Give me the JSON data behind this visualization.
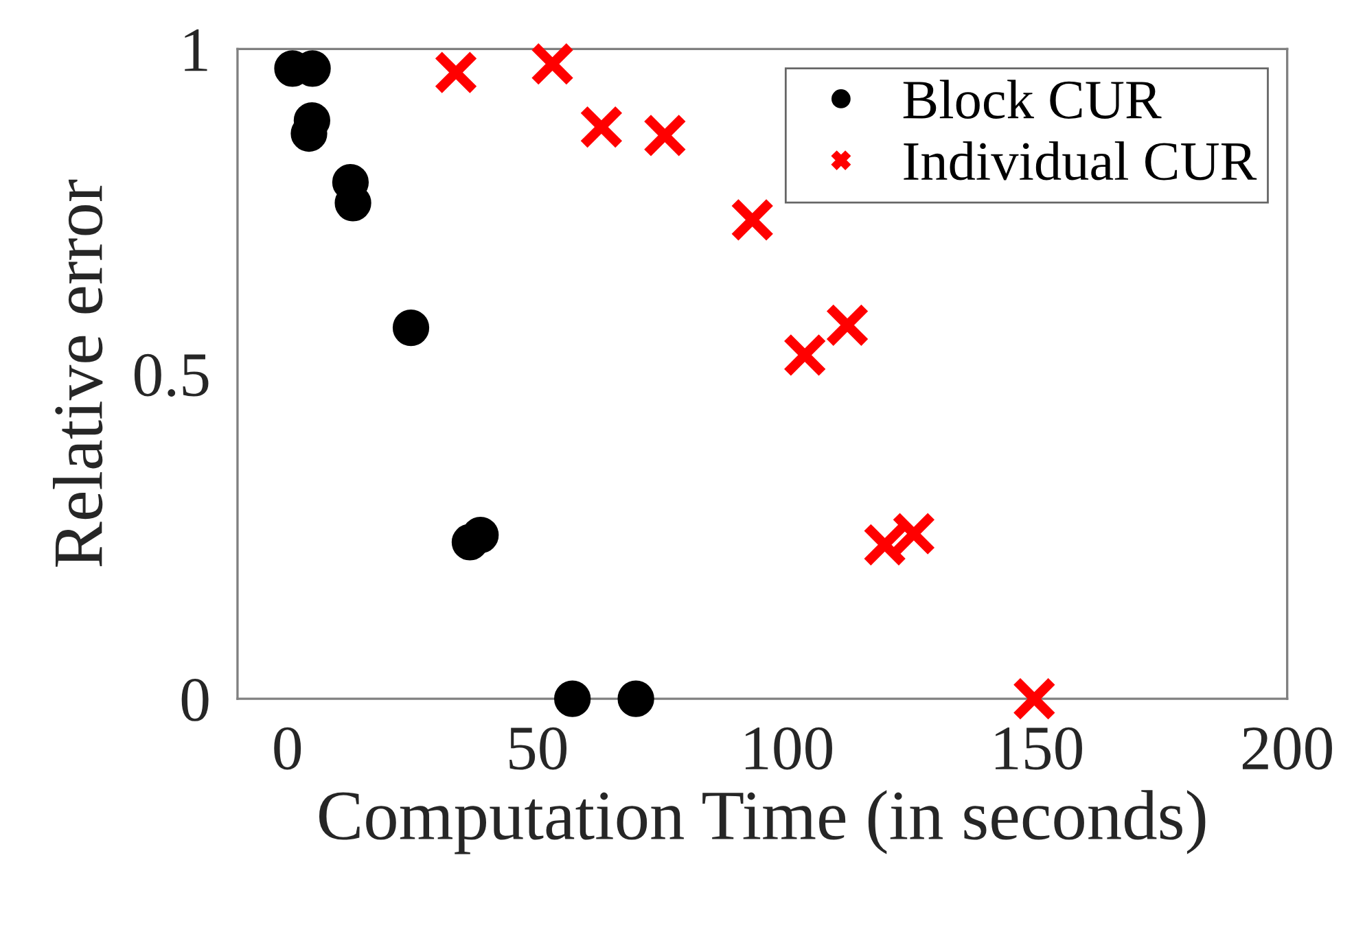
{
  "chart_data": {
    "type": "scatter",
    "xlabel": "Computation Time (in seconds)",
    "ylabel": "Relative error",
    "xlim": [
      -10,
      200
    ],
    "xticks": [
      0,
      50,
      100,
      150,
      200
    ],
    "ylim": [
      0,
      1
    ],
    "yticks": [
      0,
      0.5,
      1
    ],
    "grid": false,
    "legend": "top right",
    "series": [
      {
        "name": "Block CUR",
        "color": "#000000",
        "marker": "circle",
        "x": [
          1,
          5,
          4.9,
          4.3,
          12.6,
          13.1,
          24.7,
          36.5,
          38.6,
          57,
          69.7
        ],
        "values": [
          0.97,
          0.97,
          0.89,
          0.87,
          0.795,
          0.763,
          0.571,
          0.241,
          0.252,
          0,
          0
        ]
      },
      {
        "name": "Individual CUR",
        "color": "#ff0000",
        "marker": "cross",
        "x": [
          33.7,
          53,
          62.8,
          75.5,
          93,
          103.5,
          112,
          119.5,
          125.3,
          149.4
        ],
        "values": [
          0.964,
          0.977,
          0.88,
          0.867,
          0.737,
          0.529,
          0.575,
          0.237,
          0.254,
          0
        ]
      }
    ]
  }
}
